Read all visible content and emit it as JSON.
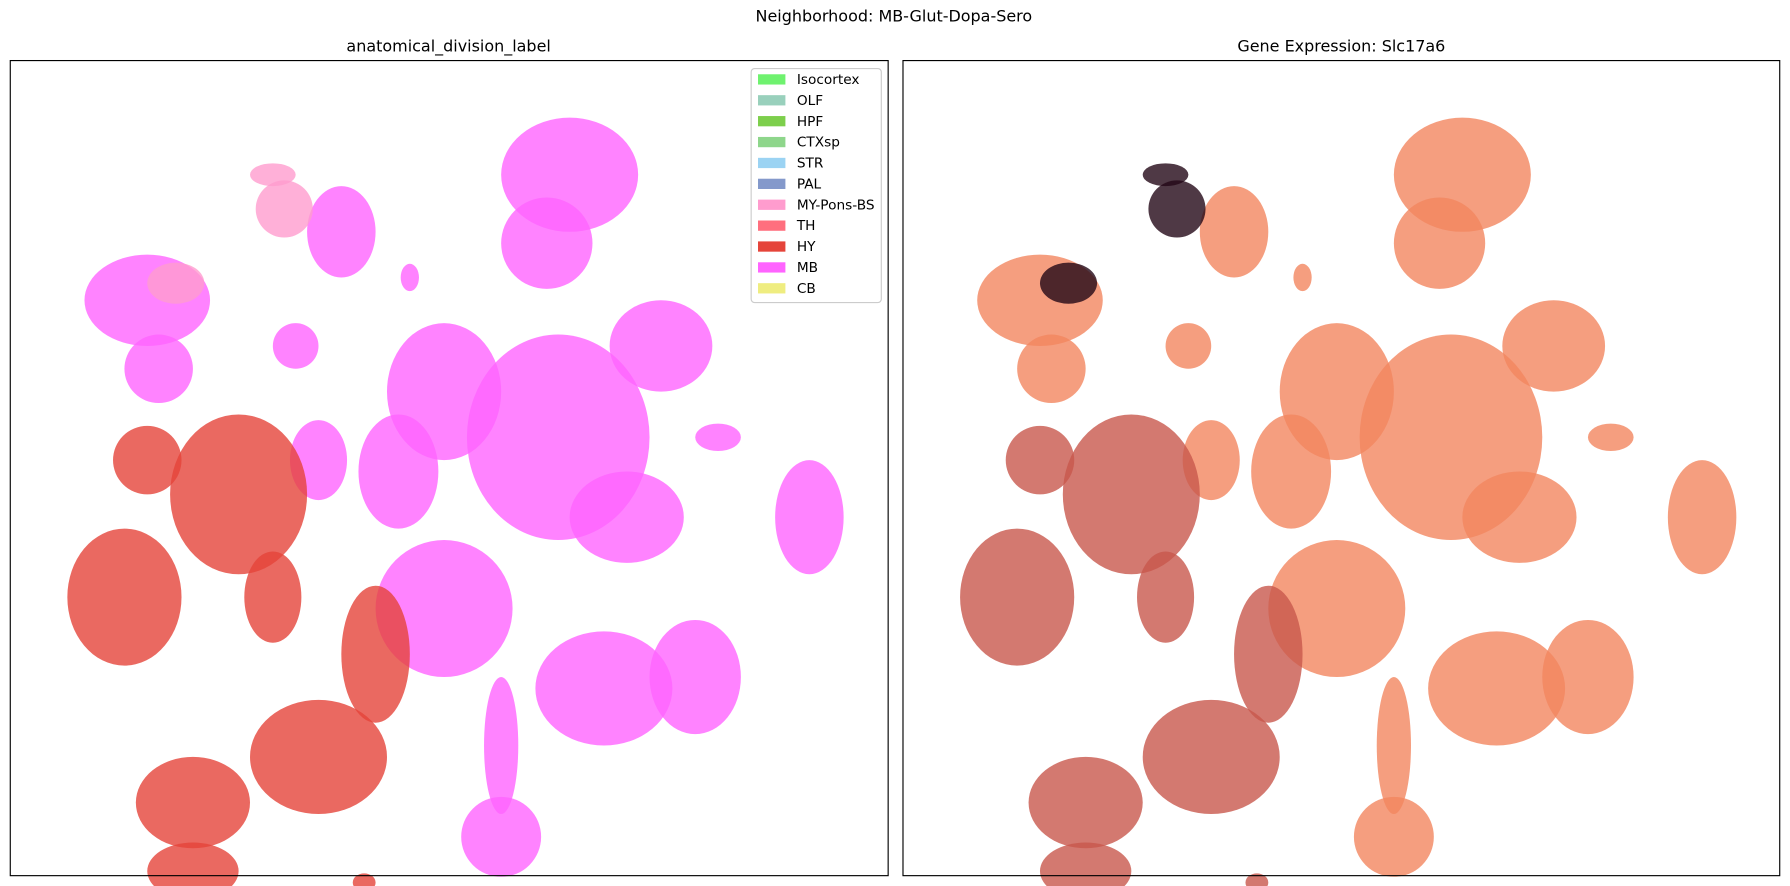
{
  "title": "Neighborhood: MB-Glut-Dopa-Sero",
  "chart_data": [
    {
      "type": "scatter",
      "title": "anatomical_division_label",
      "series": [
        {
          "name": "Isocortex",
          "color": "#6ff26f"
        },
        {
          "name": "OLF",
          "color": "#99d0bc"
        },
        {
          "name": "HPF",
          "color": "#7dcf4c"
        },
        {
          "name": "CTXsp",
          "color": "#8ed68b"
        },
        {
          "name": "STR",
          "color": "#9bd3f3"
        },
        {
          "name": "PAL",
          "color": "#8499cb"
        },
        {
          "name": "MY-Pons-BS",
          "color": "#ff9cce"
        },
        {
          "name": "TH",
          "color": "#ff6f7e"
        },
        {
          "name": "HY",
          "color": "#e5443a"
        },
        {
          "name": "MB",
          "color": "#ff64ff"
        },
        {
          "name": "CB",
          "color": "#efed80"
        }
      ],
      "legend": "upper right"
    },
    {
      "type": "scatter",
      "title": "Gene Expression: Slc17a6"
    }
  ]
}
